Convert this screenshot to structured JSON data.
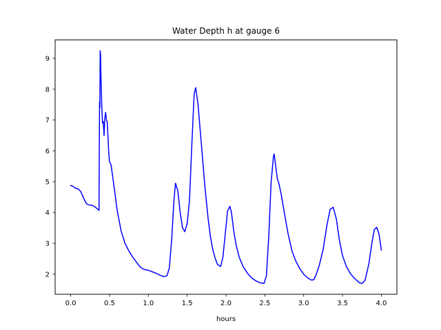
{
  "chart_data": {
    "type": "line",
    "title": "Water Depth h at gauge 6",
    "xlabel": "hours",
    "ylabel": "",
    "xlim": [
      -0.2,
      4.2
    ],
    "ylim": [
      1.35,
      9.6
    ],
    "xticks": [
      0.0,
      0.5,
      1.0,
      1.5,
      2.0,
      2.5,
      3.0,
      3.5,
      4.0
    ],
    "xtick_labels": [
      "0.0",
      "0.5",
      "1.0",
      "1.5",
      "2.0",
      "2.5",
      "3.0",
      "3.5",
      "4.0"
    ],
    "yticks": [
      2,
      3,
      4,
      5,
      6,
      7,
      8,
      9
    ],
    "ytick_labels": [
      "2",
      "3",
      "4",
      "5",
      "6",
      "7",
      "8",
      "9"
    ],
    "grid": false,
    "series": [
      {
        "color": "#0000ff",
        "x": [
          0.0,
          0.03,
          0.06,
          0.1,
          0.13,
          0.17,
          0.2,
          0.23,
          0.27,
          0.3,
          0.33,
          0.365,
          0.368,
          0.372,
          0.376,
          0.38,
          0.385,
          0.39,
          0.4,
          0.41,
          0.42,
          0.43,
          0.44,
          0.45,
          0.46,
          0.47,
          0.48,
          0.49,
          0.5,
          0.52,
          0.55,
          0.6,
          0.65,
          0.7,
          0.75,
          0.8,
          0.85,
          0.9,
          0.95,
          1.0,
          1.05,
          1.1,
          1.15,
          1.2,
          1.24,
          1.27,
          1.3,
          1.33,
          1.35,
          1.38,
          1.41,
          1.44,
          1.47,
          1.5,
          1.53,
          1.56,
          1.59,
          1.61,
          1.64,
          1.67,
          1.7,
          1.73,
          1.77,
          1.8,
          1.83,
          1.86,
          1.89,
          1.93,
          1.96,
          1.99,
          2.02,
          2.05,
          2.07,
          2.1,
          2.13,
          2.17,
          2.22,
          2.28,
          2.33,
          2.38,
          2.44,
          2.49,
          2.52,
          2.55,
          2.58,
          2.61,
          2.62,
          2.64,
          2.66,
          2.68,
          2.71,
          2.75,
          2.8,
          2.85,
          2.9,
          2.95,
          3.0,
          3.05,
          3.1,
          3.13,
          3.16,
          3.2,
          3.25,
          3.3,
          3.34,
          3.38,
          3.42,
          3.46,
          3.5,
          3.55,
          3.6,
          3.66,
          3.72,
          3.75,
          3.79,
          3.84,
          3.88,
          3.91,
          3.94,
          3.97,
          4.0
        ],
        "y": [
          4.88,
          4.85,
          4.79,
          4.76,
          4.68,
          4.45,
          4.3,
          4.25,
          4.24,
          4.2,
          4.15,
          4.07,
          5.8,
          7.6,
          7.4,
          9.25,
          9.1,
          8.4,
          7.5,
          6.9,
          6.95,
          6.5,
          7.05,
          7.25,
          7.0,
          6.95,
          6.5,
          5.95,
          5.65,
          5.55,
          5.0,
          4.05,
          3.4,
          3.0,
          2.75,
          2.55,
          2.38,
          2.22,
          2.15,
          2.13,
          2.08,
          2.03,
          1.97,
          1.92,
          1.95,
          2.2,
          3.1,
          4.4,
          4.95,
          4.7,
          4.0,
          3.5,
          3.38,
          3.65,
          4.4,
          6.2,
          7.85,
          8.05,
          7.5,
          6.6,
          5.7,
          4.8,
          3.8,
          3.2,
          2.8,
          2.52,
          2.32,
          2.25,
          2.55,
          3.3,
          4.05,
          4.2,
          4.0,
          3.4,
          2.95,
          2.55,
          2.25,
          2.02,
          1.88,
          1.79,
          1.72,
          1.7,
          1.95,
          3.2,
          4.95,
          5.8,
          5.9,
          5.5,
          5.1,
          4.95,
          4.6,
          4.0,
          3.3,
          2.75,
          2.42,
          2.18,
          2.0,
          1.88,
          1.81,
          1.82,
          1.98,
          2.28,
          2.8,
          3.6,
          4.1,
          4.17,
          3.8,
          3.1,
          2.6,
          2.25,
          2.02,
          1.85,
          1.72,
          1.7,
          1.8,
          2.35,
          3.05,
          3.45,
          3.52,
          3.3,
          2.78
        ]
      }
    ]
  }
}
